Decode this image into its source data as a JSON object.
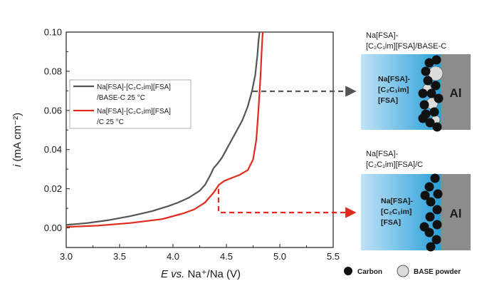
{
  "chart_data": {
    "type": "line",
    "xlabel": "E vs. Na⁺/Na (V)",
    "ylabel": "i (mA cm⁻²)",
    "xlim": [
      3.0,
      5.5
    ],
    "ylim": [
      -0.01,
      0.1
    ],
    "x_ticks": [
      "3.0",
      "3.5",
      "4.0",
      "4.5",
      "5.0",
      "5.5"
    ],
    "y_ticks": [
      "0.00",
      "0.02",
      "0.04",
      "0.06",
      "0.08",
      "0.10"
    ],
    "legend_position": "upper-left",
    "series": [
      {
        "name": "Na[FSA]-[C₂C₁im][FSA] /BASE-C 25 °C",
        "name_lines": [
          "Na[FSA]-[C₂C₁im][FSA]",
          "/BASE-C 25 °C"
        ],
        "color": "#555555",
        "x": [
          3.0,
          3.2,
          3.4,
          3.6,
          3.8,
          3.95,
          4.05,
          4.15,
          4.25,
          4.3,
          4.35,
          4.38,
          4.42,
          4.46,
          4.5,
          4.55,
          4.6,
          4.65,
          4.7,
          4.74,
          4.77,
          4.79,
          4.8,
          4.81
        ],
        "y": [
          0.0015,
          0.0025,
          0.004,
          0.006,
          0.0085,
          0.011,
          0.013,
          0.0155,
          0.019,
          0.022,
          0.027,
          0.0305,
          0.033,
          0.036,
          0.04,
          0.045,
          0.05,
          0.055,
          0.062,
          0.07,
          0.078,
          0.088,
          0.095,
          0.1
        ]
      },
      {
        "name": "Na[FSA]-[C₂C₁im][FSA] /C 25 °C",
        "name_lines": [
          "Na[FSA]-[C₂C₁im][FSA]",
          "/C 25 °C"
        ],
        "color": "#e1291c",
        "x": [
          3.0,
          3.3,
          3.6,
          3.9,
          4.1,
          4.2,
          4.3,
          4.38,
          4.43,
          4.48,
          4.55,
          4.62,
          4.7,
          4.75,
          4.78,
          4.8,
          4.82,
          4.83,
          4.84
        ],
        "y": [
          0.0005,
          0.0012,
          0.0025,
          0.0045,
          0.0075,
          0.0095,
          0.013,
          0.018,
          0.022,
          0.024,
          0.0255,
          0.027,
          0.0295,
          0.035,
          0.045,
          0.06,
          0.078,
          0.09,
          0.1
        ]
      }
    ]
  },
  "schematics": {
    "top": {
      "title_lines": [
        "Na[FSA]-",
        "[C₂C₁im][FSA]/BASE-C"
      ],
      "electrolyte_lines": [
        "Na[FSA]-",
        "[C₂C₁im]",
        "[FSA]"
      ],
      "electrode": "Al"
    },
    "bottom": {
      "title_lines": [
        "Na[FSA]-",
        "[C₂C₁im][FSA]/C"
      ],
      "electrolyte_lines": [
        "Na[FSA]-",
        "[C₂C₁im]",
        "[FSA]"
      ],
      "electrode": "Al"
    },
    "legend": {
      "carbon": "Carbon",
      "base": "BASE powder"
    }
  },
  "colors": {
    "electrolyte_light": "#bfe3f6",
    "electrolyte_dark": "#2a9fd8",
    "aluminium": "#8c8c8c",
    "arrow_top": "#555555",
    "arrow_bottom": "#e1291c",
    "carbon": "#111111",
    "base_powder": "#dcdcdc"
  }
}
